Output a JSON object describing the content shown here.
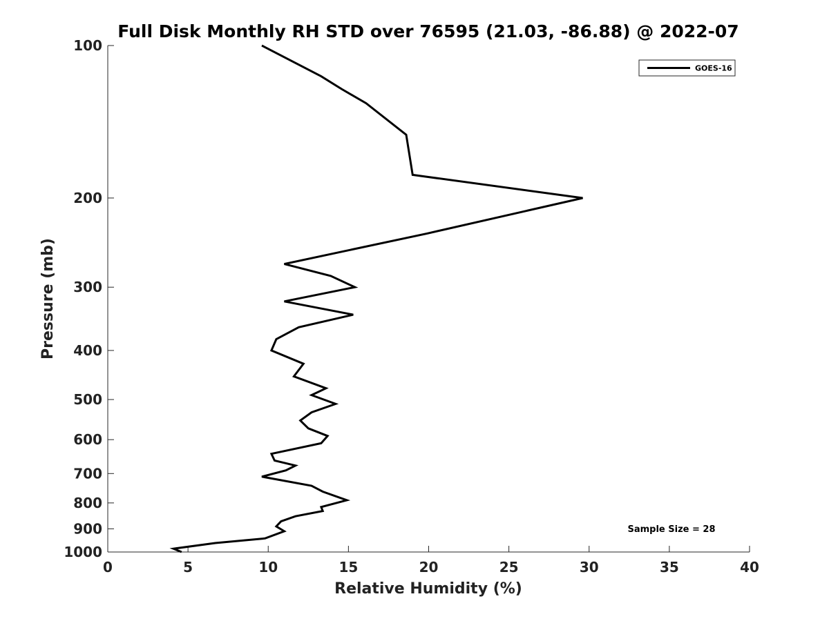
{
  "chart_data": {
    "type": "line",
    "title": "Full Disk Monthly RH STD over 76595 (21.03, -86.88) @ 2022-07",
    "xlabel": "Relative Humidity (%)",
    "ylabel": "Pressure (mb)",
    "xlim": [
      0,
      40
    ],
    "ylim": [
      100,
      1000
    ],
    "y_scale": "log",
    "y_reversed": true,
    "grid": false,
    "legend_position": "top-right",
    "x_ticks": [
      0,
      5,
      10,
      15,
      20,
      25,
      30,
      35,
      40
    ],
    "y_ticks": [
      100,
      200,
      300,
      400,
      500,
      600,
      700,
      800,
      900,
      1000
    ],
    "annotation": "Sample Size = 28",
    "series": [
      {
        "name": "GOES-16",
        "color": "#000000",
        "points": [
          [
            9.6,
            100
          ],
          [
            13.3,
            115
          ],
          [
            14.6,
            122
          ],
          [
            16.1,
            130
          ],
          [
            18.6,
            150
          ],
          [
            19.0,
            180
          ],
          [
            29.6,
            200
          ],
          [
            19.9,
            235
          ],
          [
            11.0,
            270
          ],
          [
            13.9,
            285
          ],
          [
            15.4,
            300
          ],
          [
            11.0,
            320
          ],
          [
            15.3,
            340
          ],
          [
            11.9,
            360
          ],
          [
            10.5,
            380
          ],
          [
            10.2,
            400
          ],
          [
            12.2,
            425
          ],
          [
            11.6,
            450
          ],
          [
            13.6,
            475
          ],
          [
            12.7,
            490
          ],
          [
            14.2,
            510
          ],
          [
            12.7,
            530
          ],
          [
            12.0,
            550
          ],
          [
            12.5,
            570
          ],
          [
            13.7,
            590
          ],
          [
            13.3,
            610
          ],
          [
            10.2,
            640
          ],
          [
            10.4,
            660
          ],
          [
            11.7,
            675
          ],
          [
            11.1,
            690
          ],
          [
            9.6,
            710
          ],
          [
            12.7,
            740
          ],
          [
            13.4,
            760
          ],
          [
            14.9,
            790
          ],
          [
            13.3,
            815
          ],
          [
            13.4,
            830
          ],
          [
            11.7,
            850
          ],
          [
            10.8,
            870
          ],
          [
            10.5,
            890
          ],
          [
            11.0,
            910
          ],
          [
            9.8,
            940
          ],
          [
            6.7,
            960
          ],
          [
            4.1,
            985
          ],
          [
            4.6,
            1000
          ]
        ]
      }
    ]
  }
}
